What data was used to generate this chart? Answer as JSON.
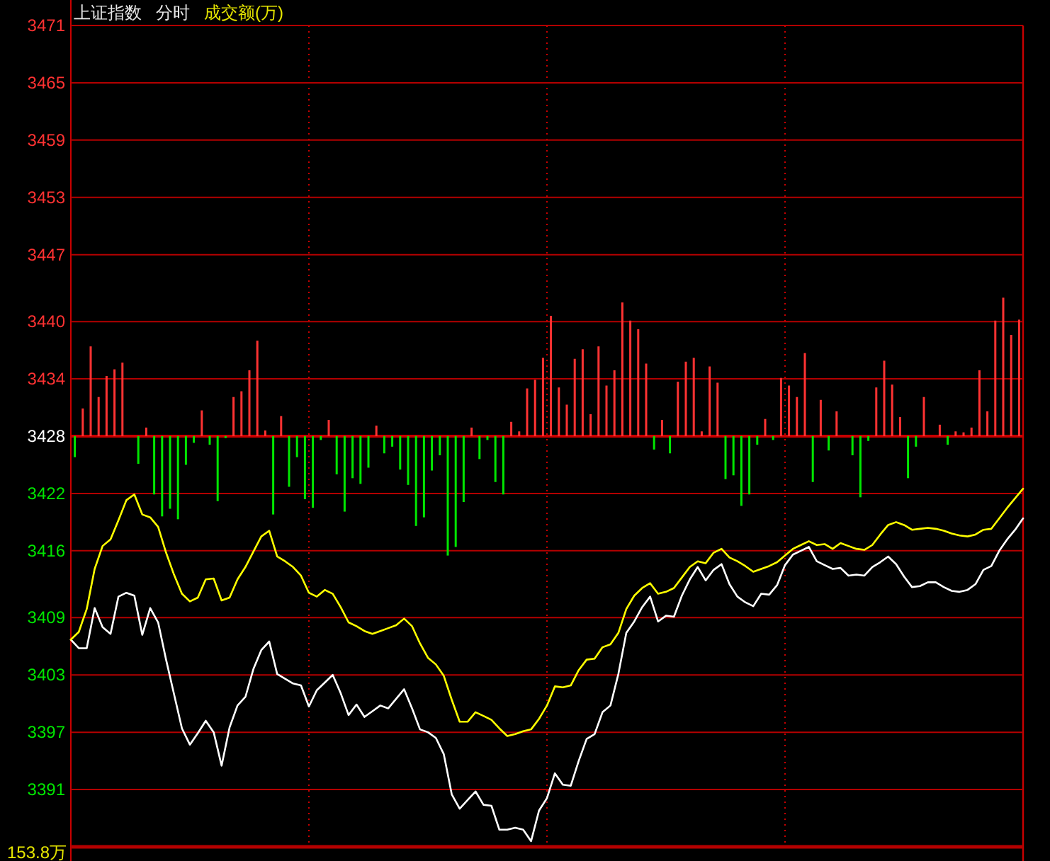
{
  "chart_data": [
    {
      "type": "line",
      "title": "上证指数",
      "subtitle": "分时",
      "annotations": [
        "成交额(万)",
        "153.8万"
      ],
      "categories": [
        null,
        null,
        null,
        null,
        null,
        null,
        null,
        null,
        null,
        null,
        null,
        null,
        null,
        null,
        null,
        null,
        null,
        null,
        null,
        null,
        null,
        null,
        null,
        null,
        null,
        null,
        null,
        null,
        null,
        null,
        null,
        null,
        null,
        null,
        null,
        null,
        null,
        null,
        null,
        null,
        null,
        null,
        null,
        null,
        null,
        null,
        null,
        null,
        null,
        null,
        null,
        null,
        null,
        null,
        null,
        null,
        null,
        null,
        null,
        null,
        null,
        null,
        null,
        null,
        null,
        null,
        null,
        null,
        null,
        null,
        null,
        null,
        null,
        null,
        null,
        null,
        null,
        null,
        null,
        null,
        null,
        null,
        null,
        null,
        null,
        null,
        null,
        null,
        null,
        null,
        null,
        null,
        null,
        null,
        null,
        null,
        null,
        null,
        null,
        null,
        null,
        null,
        null,
        null,
        null,
        null,
        null,
        null,
        null,
        null,
        null,
        null,
        null,
        null,
        null,
        null,
        null,
        null,
        null,
        null,
        null
      ],
      "ylim": [
        3385,
        3471
      ],
      "yticks": [
        3391,
        3397,
        3403,
        3409,
        3416,
        3422,
        3428,
        3434,
        3440,
        3447,
        3453,
        3459,
        3465,
        3471
      ],
      "tick_labels": "y",
      "grid": true,
      "ref_lines": [
        {
          "axis": "y",
          "value": 3428,
          "color": "#c80000"
        }
      ],
      "series": [
        {
          "color": "#ffffff",
          "values": [
            3406.7,
            3405.8,
            3405.8,
            3410.0,
            3408.0,
            3407.3,
            3411.2,
            3411.6,
            3411.3,
            3407.2,
            3410.0,
            3408.5,
            3404.6,
            3401.0,
            3397.4,
            3395.7,
            3396.9,
            3398.2,
            3397.0,
            3393.5,
            3397.5,
            3399.8,
            3400.7,
            3403.6,
            3405.6,
            3406.5,
            3403.1,
            3402.6,
            3402.1,
            3401.9,
            3399.7,
            3401.4,
            3402.2,
            3403.0,
            3401.1,
            3398.8,
            3399.9,
            3398.6,
            3399.2,
            3399.8,
            3399.5,
            3400.5,
            3401.5,
            3399.5,
            3397.3,
            3397.0,
            3396.4,
            3394.7,
            3390.5,
            3389.0,
            3389.9,
            3390.8,
            3389.4,
            3389.3,
            3386.8,
            3386.8,
            3387.0,
            3386.8,
            3385.6,
            3388.8,
            3390.1,
            3392.7,
            3391.5,
            3391.4,
            3394.0,
            3396.3,
            3396.8,
            3399.1,
            3399.8,
            3403.1,
            3407.4,
            3408.6,
            3410.1,
            3411.2,
            3408.6,
            3409.2,
            3409.1,
            3411.3,
            3413.0,
            3414.3,
            3412.9,
            3414.0,
            3414.6,
            3412.5,
            3411.2,
            3410.6,
            3410.2,
            3411.5,
            3411.4,
            3412.4,
            3414.5,
            3415.6,
            3416.0,
            3416.4,
            3414.9,
            3414.5,
            3414.1,
            3414.2,
            3413.4,
            3413.5,
            3413.4,
            3414.3,
            3414.8,
            3415.4,
            3414.6,
            3413.3,
            3412.2,
            3412.3,
            3412.7,
            3412.7,
            3412.2,
            3411.8,
            3411.7,
            3411.9,
            3412.5,
            3414.0,
            3414.4,
            3416.0,
            3417.2,
            3418.2,
            3419.4
          ]
        },
        {
          "color": "#ffff00",
          "values": [
            3406.7,
            3407.5,
            3409.9,
            3414.1,
            3416.5,
            3417.2,
            3419.2,
            3421.3,
            3421.9,
            3419.8,
            3419.5,
            3418.5,
            3415.8,
            3413.5,
            3411.5,
            3410.7,
            3411.1,
            3413.0,
            3413.1,
            3410.8,
            3411.1,
            3413.0,
            3414.3,
            3415.9,
            3417.5,
            3418.1,
            3415.4,
            3414.9,
            3414.3,
            3413.4,
            3411.6,
            3411.2,
            3411.9,
            3411.5,
            3410.1,
            3408.5,
            3408.1,
            3407.6,
            3407.3,
            3407.6,
            3407.9,
            3408.2,
            3408.9,
            3408.1,
            3406.3,
            3404.8,
            3404.1,
            3402.9,
            3400.4,
            3398.1,
            3398.1,
            3399.1,
            3398.7,
            3398.3,
            3397.4,
            3396.6,
            3396.8,
            3397.1,
            3397.3,
            3398.4,
            3399.8,
            3401.8,
            3401.7,
            3401.9,
            3403.5,
            3404.6,
            3404.7,
            3405.9,
            3406.2,
            3407.4,
            3409.9,
            3411.3,
            3412.1,
            3412.6,
            3411.5,
            3411.7,
            3412.1,
            3413.2,
            3414.3,
            3414.9,
            3414.7,
            3415.8,
            3416.2,
            3415.3,
            3414.9,
            3414.4,
            3413.8,
            3414.1,
            3414.4,
            3414.8,
            3415.5,
            3416.2,
            3416.6,
            3417.0,
            3416.6,
            3416.7,
            3416.2,
            3416.8,
            3416.5,
            3416.2,
            3416.1,
            3416.6,
            3417.7,
            3418.7,
            3419.0,
            3418.7,
            3418.2,
            3418.3,
            3418.4,
            3418.3,
            3418.1,
            3417.8,
            3417.6,
            3417.5,
            3417.7,
            3418.2,
            3418.3,
            3419.4,
            3420.5,
            3421.5,
            3422.5
          ]
        }
      ]
    },
    {
      "type": "bar",
      "tick_labels": false,
      "ylim": [
        3385,
        3471
      ],
      "categories": [
        null,
        null,
        null,
        null,
        null,
        null,
        null,
        null,
        null,
        null,
        null,
        null,
        null,
        null,
        null,
        null,
        null,
        null,
        null,
        null,
        null,
        null,
        null,
        null,
        null,
        null,
        null,
        null,
        null,
        null,
        null,
        null,
        null,
        null,
        null,
        null,
        null,
        null,
        null,
        null,
        null,
        null,
        null,
        null,
        null,
        null,
        null,
        null,
        null,
        null,
        null,
        null,
        null,
        null,
        null,
        null,
        null,
        null,
        null,
        null,
        null,
        null,
        null,
        null,
        null,
        null,
        null,
        null,
        null,
        null,
        null,
        null,
        null,
        null,
        null,
        null,
        null,
        null,
        null,
        null,
        null,
        null,
        null,
        null,
        null,
        null,
        null,
        null,
        null,
        null,
        null,
        null,
        null,
        null,
        null,
        null,
        null,
        null,
        null,
        null,
        null,
        null,
        null,
        null,
        null,
        null,
        null,
        null,
        null,
        null,
        null,
        null,
        null,
        null,
        null,
        null,
        null,
        null,
        null,
        null
      ],
      "series": [
        {
          "base": [
            3428,
            3428,
            3428,
            3428,
            3428,
            3428,
            3428,
            null,
            3428,
            3428,
            3428,
            3428,
            3428,
            3428,
            3428,
            3428,
            3428,
            3428,
            3428,
            3428,
            3428,
            3428,
            3428,
            3428,
            3428,
            3428,
            3428,
            3428,
            3428,
            3428,
            3428,
            3428,
            3428,
            3428,
            3428,
            3428,
            3428,
            3428,
            3428,
            3428,
            3428,
            3428,
            3428,
            3428,
            3428,
            3428,
            3428,
            3428,
            3428,
            3428,
            3428,
            3428,
            3428,
            3428,
            3428,
            3428,
            3428,
            3428,
            3428,
            3428,
            3428,
            3428,
            3428,
            3428,
            3428,
            3428,
            3428,
            3428,
            3428,
            3428,
            3428,
            3428,
            3428,
            3428,
            3428,
            3428,
            3428,
            3428,
            3428,
            3428,
            3428,
            3428,
            3428,
            3428,
            3428,
            3428,
            3428,
            3428,
            3428,
            3428,
            3428,
            3428,
            3428,
            3428,
            3428,
            3428,
            3428,
            null,
            3428,
            3428,
            3428,
            3428,
            3428,
            3428,
            3428,
            3428,
            3428,
            3428,
            null,
            3428,
            3428,
            3428,
            3428,
            3428,
            3428,
            3428,
            3428,
            3428,
            3428,
            3428
          ],
          "values": [
            -2.2,
            2.9,
            9.4,
            4.1,
            6.3,
            7.0,
            7.7,
            null,
            -2.9,
            0.9,
            -6.1,
            -8.4,
            -7.6,
            -8.7,
            -3.0,
            -0.7,
            2.7,
            -0.9,
            -6.8,
            -0.2,
            4.1,
            4.7,
            6.9,
            10.0,
            0.6,
            -8.2,
            2.1,
            -5.3,
            -2.2,
            -6.6,
            -7.5,
            -0.4,
            1.7,
            -4.0,
            -7.9,
            -4.4,
            -5.0,
            -3.3,
            1.1,
            -1.8,
            -1.1,
            -3.5,
            -5.1,
            -9.4,
            -8.5,
            -3.6,
            -2.0,
            -12.5,
            -11.6,
            -6.9,
            0.9,
            -2.4,
            -0.4,
            -4.8,
            -6.1,
            1.5,
            0.5,
            5.0,
            5.9,
            8.2,
            12.6,
            5.1,
            3.3,
            8.1,
            9.1,
            2.3,
            9.4,
            5.3,
            6.9,
            14.0,
            12.1,
            11.2,
            7.6,
            -1.4,
            1.7,
            -1.8,
            5.7,
            7.8,
            8.2,
            0.5,
            7.3,
            5.6,
            -4.5,
            -4.1,
            -7.3,
            -6.1,
            -0.9,
            1.8,
            -0.4,
            6.1,
            5.3,
            4.1,
            8.7,
            -4.8,
            3.8,
            -1.5,
            2.6,
            null,
            -2.0,
            -6.4,
            -0.5,
            5.1,
            7.9,
            5.4,
            2.0,
            -4.4,
            -1.1,
            4.1,
            null,
            1.2,
            -0.9,
            0.5,
            0.4,
            0.9,
            6.9,
            2.6,
            12.1,
            14.5,
            10.6,
            12.2
          ],
          "colors": [
            "#00e600",
            "#ff3232",
            "#ff3232",
            "#ff3232",
            "#ff3232",
            "#ff3232",
            "#ff3232",
            null,
            "#00e600",
            "#ff3232",
            "#00e600",
            "#00e600",
            "#00e600",
            "#00e600",
            "#00e600",
            "#00e600",
            "#ff3232",
            "#00e600",
            "#00e600",
            "#00e600",
            "#ff3232",
            "#ff3232",
            "#ff3232",
            "#ff3232",
            "#ff3232",
            "#00e600",
            "#ff3232",
            "#00e600",
            "#00e600",
            "#00e600",
            "#00e600",
            "#00e600",
            "#ff3232",
            "#00e600",
            "#00e600",
            "#00e600",
            "#00e600",
            "#00e600",
            "#ff3232",
            "#00e600",
            "#00e600",
            "#00e600",
            "#00e600",
            "#00e600",
            "#00e600",
            "#00e600",
            "#00e600",
            "#00e600",
            "#00e600",
            "#00e600",
            "#ff3232",
            "#00e600",
            "#00e600",
            "#00e600",
            "#00e600",
            "#ff3232",
            "#ff3232",
            "#ff3232",
            "#ff3232",
            "#ff3232",
            "#ff3232",
            "#ff3232",
            "#ff3232",
            "#ff3232",
            "#ff3232",
            "#ff3232",
            "#ff3232",
            "#ff3232",
            "#ff3232",
            "#ff3232",
            "#ff3232",
            "#ff3232",
            "#ff3232",
            "#00e600",
            "#ff3232",
            "#00e600",
            "#ff3232",
            "#ff3232",
            "#ff3232",
            "#ff3232",
            "#ff3232",
            "#ff3232",
            "#00e600",
            "#00e600",
            "#00e600",
            "#00e600",
            "#00e600",
            "#ff3232",
            "#00e600",
            "#ff3232",
            "#ff3232",
            "#ff3232",
            "#ff3232",
            "#00e600",
            "#ff3232",
            "#00e600",
            "#ff3232",
            null,
            "#00e600",
            "#00e600",
            "#00e600",
            "#ff3232",
            "#ff3232",
            "#ff3232",
            "#ff3232",
            "#00e600",
            "#00e600",
            "#ff3232",
            null,
            "#ff3232",
            "#00e600",
            "#ff3232",
            "#ff3232",
            "#ff3232",
            "#ff3232",
            "#ff3232",
            "#ff3232",
            "#ff3232",
            "#ff3232",
            "#ff3232"
          ]
        }
      ]
    }
  ]
}
